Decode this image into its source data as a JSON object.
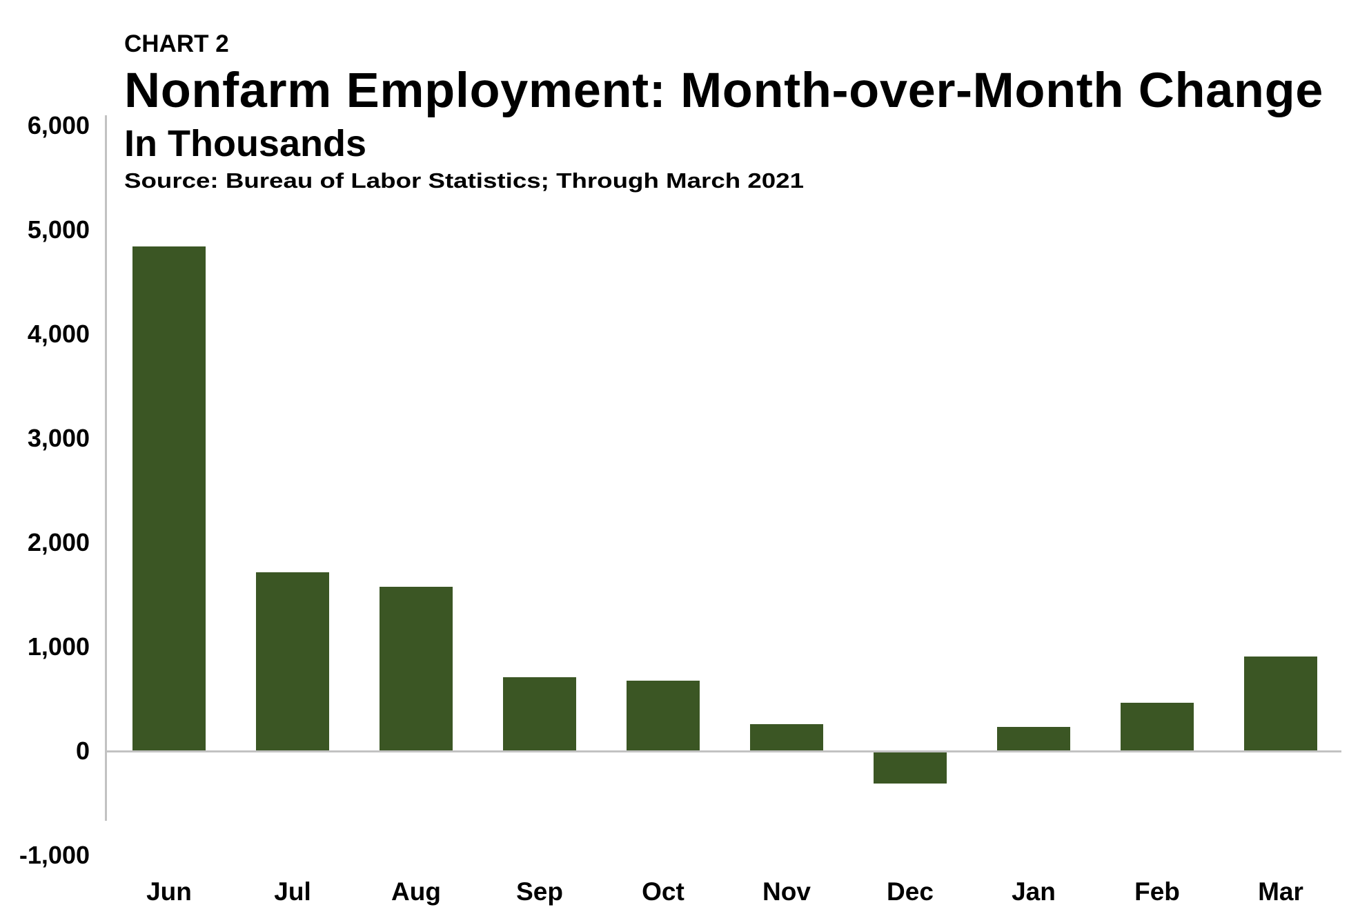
{
  "header": {
    "chart_label": "CHART 2",
    "title": "Nonfarm Employment: Month-over-Month Change",
    "subtitle": "In Thousands",
    "source": "Source: Bureau of Labor Statistics; Through March 2021"
  },
  "colors": {
    "bar": "#3b5624",
    "axis": "#c2c2c2",
    "text": "#000000",
    "background": "#ffffff"
  },
  "y_axis": {
    "ticks": [
      {
        "value": 6000,
        "label": "6,000"
      },
      {
        "value": 5000,
        "label": "5,000"
      },
      {
        "value": 4000,
        "label": "4,000"
      },
      {
        "value": 3000,
        "label": "3,000"
      },
      {
        "value": 2000,
        "label": "2,000"
      },
      {
        "value": 1000,
        "label": "1,000"
      },
      {
        "value": 0,
        "label": "0"
      },
      {
        "value": -1000,
        "label": "-1,000"
      }
    ]
  },
  "chart_data": {
    "type": "bar",
    "title": "Nonfarm Employment: Month-over-Month Change",
    "subtitle": "In Thousands",
    "source": "Source: Bureau of Labor Statistics; Through March 2021",
    "xlabel": "",
    "ylabel": "In Thousands",
    "categories": [
      "Jun",
      "Jul",
      "Aug",
      "Sep",
      "Oct",
      "Nov",
      "Dec",
      "Jan",
      "Feb",
      "Mar"
    ],
    "values": [
      4840,
      1715,
      1576,
      709,
      675,
      258,
      -300,
      233,
      463,
      907
    ],
    "ylim": [
      -1000,
      6000
    ],
    "yticks": [
      -1000,
      0,
      1000,
      2000,
      3000,
      4000,
      5000,
      6000
    ],
    "grid": false,
    "legend": null
  }
}
